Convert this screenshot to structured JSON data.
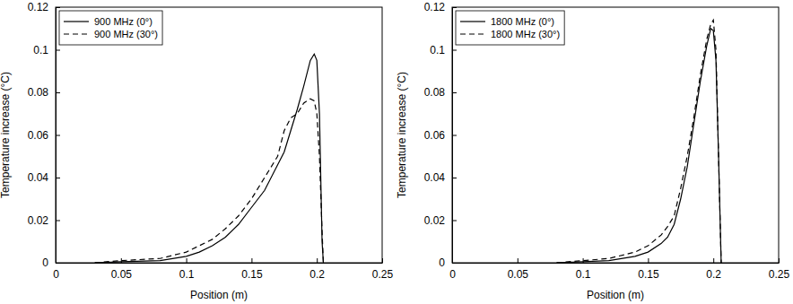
{
  "chart_data": [
    {
      "type": "line",
      "x_label": "Position (m)",
      "y_label": "Temperature increase (°C)",
      "xlim": [
        0,
        0.25
      ],
      "xticks": [
        0,
        0.05,
        0.1,
        0.15,
        0.2,
        0.25
      ],
      "ylim": [
        0,
        0.12
      ],
      "yticks": [
        0,
        0.02,
        0.04,
        0.06,
        0.08,
        0.1,
        0.12
      ],
      "legend": "upper left",
      "x": [
        0.03,
        0.05,
        0.08,
        0.1,
        0.11,
        0.12,
        0.13,
        0.14,
        0.15,
        0.16,
        0.17,
        0.175,
        0.18,
        0.185,
        0.19,
        0.195,
        0.198,
        0.2,
        0.202,
        0.204,
        0.205
      ],
      "series": [
        {
          "name": "900 MHz (0°)",
          "color": "#000000",
          "line_style": "solid",
          "values": [
            0,
            0.0005,
            0.001,
            0.003,
            0.005,
            0.008,
            0.012,
            0.018,
            0.026,
            0.034,
            0.046,
            0.052,
            0.062,
            0.072,
            0.083,
            0.095,
            0.098,
            0.095,
            0.07,
            0.01,
            0
          ]
        },
        {
          "name": "900 MHz (30°)",
          "color": "#000000",
          "line_style": "dashed",
          "values": [
            0,
            0.001,
            0.002,
            0.005,
            0.008,
            0.011,
            0.016,
            0.022,
            0.03,
            0.04,
            0.05,
            0.062,
            0.068,
            0.07,
            0.075,
            0.077,
            0.076,
            0.07,
            0.05,
            0.015,
            0
          ]
        }
      ]
    },
    {
      "type": "line",
      "x_label": "Position (m)",
      "y_label": "Temperature increase (°C)",
      "xlim": [
        0,
        0.25
      ],
      "xticks": [
        0,
        0.05,
        0.1,
        0.15,
        0.2,
        0.25
      ],
      "ylim": [
        0,
        0.12
      ],
      "yticks": [
        0,
        0.02,
        0.04,
        0.06,
        0.08,
        0.1,
        0.12
      ],
      "legend": "upper left",
      "x": [
        0.08,
        0.12,
        0.14,
        0.15,
        0.16,
        0.165,
        0.17,
        0.175,
        0.18,
        0.185,
        0.19,
        0.195,
        0.198,
        0.2,
        0.202,
        0.204,
        0.206
      ],
      "series": [
        {
          "name": "1800 MHz (0°)",
          "color": "#000000",
          "line_style": "solid",
          "values": [
            0,
            0.001,
            0.003,
            0.005,
            0.009,
            0.012,
            0.018,
            0.03,
            0.045,
            0.065,
            0.085,
            0.102,
            0.11,
            0.109,
            0.095,
            0.05,
            0
          ]
        },
        {
          "name": "1800 MHz (30°)",
          "color": "#000000",
          "line_style": "dashed",
          "values": [
            0,
            0.002,
            0.005,
            0.008,
            0.013,
            0.017,
            0.022,
            0.035,
            0.05,
            0.068,
            0.088,
            0.105,
            0.112,
            0.114,
            0.1,
            0.05,
            0
          ]
        }
      ]
    }
  ]
}
